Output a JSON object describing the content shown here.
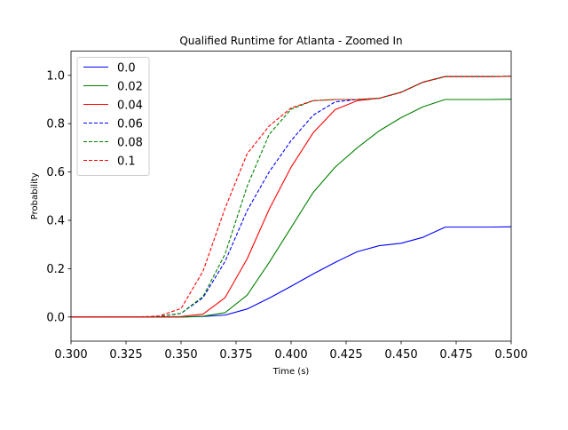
{
  "chart_data": {
    "type": "line",
    "title": "Qualified Runtime for Atlanta - Zoomed In",
    "xlabel": "Time (s)",
    "ylabel": "Probability",
    "xlim": [
      0.3,
      0.5
    ],
    "ylim": [
      -0.1,
      1.1
    ],
    "xticks": [
      0.3,
      0.325,
      0.35,
      0.375,
      0.4,
      0.425,
      0.45,
      0.475,
      0.5
    ],
    "xtick_labels": [
      "0.300",
      "0.325",
      "0.350",
      "0.375",
      "0.400",
      "0.425",
      "0.450",
      "0.475",
      "0.500"
    ],
    "yticks": [
      0.0,
      0.2,
      0.4,
      0.6,
      0.8,
      1.0
    ],
    "ytick_labels": [
      "0.0",
      "0.2",
      "0.4",
      "0.6",
      "0.8",
      "1.0"
    ],
    "grid": false,
    "legend": "top-left",
    "x": [
      0.3,
      0.31,
      0.32,
      0.33,
      0.34,
      0.35,
      0.36,
      0.37,
      0.38,
      0.39,
      0.4,
      0.41,
      0.42,
      0.43,
      0.44,
      0.45,
      0.46,
      0.47,
      0.48,
      0.49,
      0.5
    ],
    "series": [
      {
        "name": "0.0",
        "color": "#0000ff",
        "style": "solid",
        "values": [
          0,
          0,
          0,
          0,
          0,
          0,
          0.002,
          0.008,
          0.033,
          0.078,
          0.127,
          0.178,
          0.226,
          0.27,
          0.295,
          0.305,
          0.33,
          0.372,
          0.372,
          0.372,
          0.373
        ]
      },
      {
        "name": "0.02",
        "color": "#008000",
        "style": "solid",
        "values": [
          0,
          0,
          0,
          0,
          0,
          0,
          0.003,
          0.018,
          0.09,
          0.225,
          0.37,
          0.515,
          0.62,
          0.7,
          0.77,
          0.825,
          0.87,
          0.9,
          0.9,
          0.9,
          0.901
        ]
      },
      {
        "name": "0.04",
        "color": "#ff0000",
        "style": "solid",
        "values": [
          0,
          0,
          0,
          0,
          0,
          0.002,
          0.012,
          0.08,
          0.24,
          0.445,
          0.62,
          0.762,
          0.858,
          0.895,
          0.905,
          0.93,
          0.972,
          0.995,
          0.995,
          0.995,
          0.996
        ]
      },
      {
        "name": "0.06",
        "color": "#0000ff",
        "style": "dashed",
        "values": [
          0,
          0,
          0,
          0,
          0.002,
          0.015,
          0.08,
          0.23,
          0.44,
          0.6,
          0.73,
          0.835,
          0.89,
          0.9,
          0.905,
          0.93,
          0.972,
          0.995,
          0.995,
          0.995,
          0.996
        ]
      },
      {
        "name": "0.08",
        "color": "#008000",
        "style": "dashed",
        "values": [
          0,
          0,
          0,
          0,
          0.002,
          0.015,
          0.085,
          0.26,
          0.54,
          0.755,
          0.86,
          0.895,
          0.9,
          0.9,
          0.905,
          0.93,
          0.972,
          0.995,
          0.995,
          0.995,
          0.996
        ]
      },
      {
        "name": "0.1",
        "color": "#ff0000",
        "style": "dashed",
        "values": [
          0,
          0,
          0,
          0,
          0.004,
          0.035,
          0.19,
          0.45,
          0.675,
          0.79,
          0.865,
          0.895,
          0.9,
          0.9,
          0.905,
          0.93,
          0.972,
          0.995,
          0.995,
          0.995,
          0.996
        ]
      }
    ]
  }
}
